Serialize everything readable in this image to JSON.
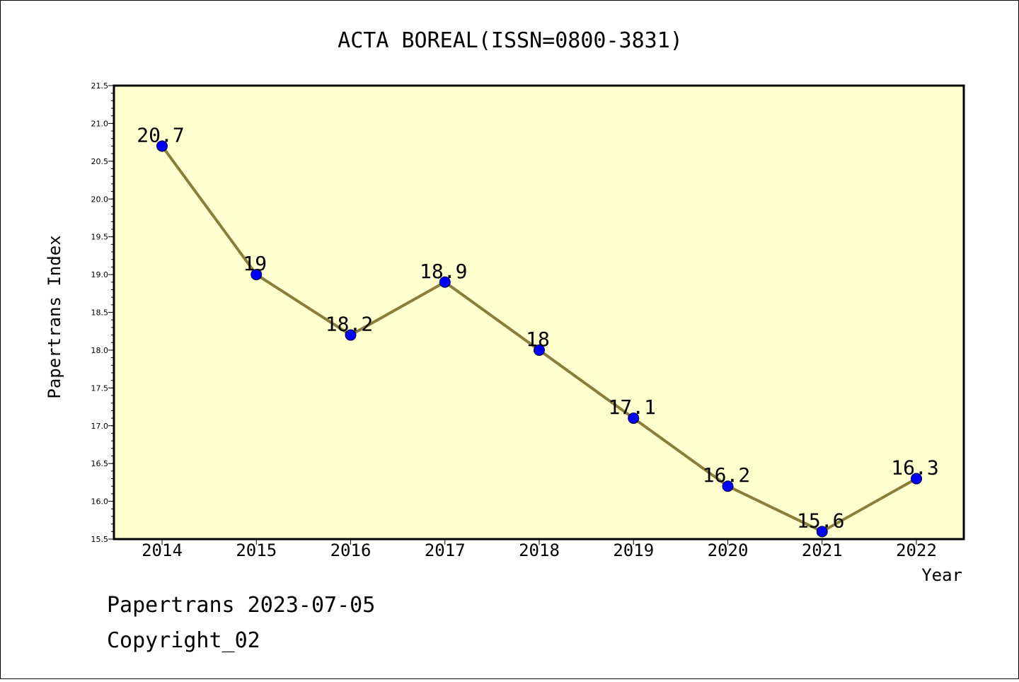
{
  "chart_data": {
    "type": "line",
    "title": "ACTA BOREAL(ISSN=0800-3831)",
    "xlabel": "Year",
    "ylabel": "Papertrans Index",
    "categories": [
      "2014",
      "2015",
      "2016",
      "2017",
      "2018",
      "2019",
      "2020",
      "2021",
      "2022"
    ],
    "series": [
      {
        "values": [
          20.7,
          19,
          18.2,
          18.9,
          18,
          17.1,
          16.2,
          15.6,
          16.3
        ],
        "labels": [
          "20.7",
          "19",
          "18.2",
          "18.9",
          "18",
          "17.1",
          "16.2",
          "15.6",
          "16.3"
        ]
      }
    ],
    "ylim": [
      15.5,
      21.5
    ],
    "yticks": [
      "15.5",
      "16.0",
      "16.5",
      "17.0",
      "17.5",
      "18.0",
      "18.5",
      "19.0",
      "19.5",
      "20.0",
      "20.5",
      "21.0",
      "21.5"
    ],
    "grid": false,
    "colors": {
      "plot_background": "#ffffd0",
      "line": "#8b7d3a",
      "marker": "#0000ff"
    }
  },
  "footer": {
    "line1": "Papertrans 2023-07-05",
    "line2": "Copyright_02"
  }
}
